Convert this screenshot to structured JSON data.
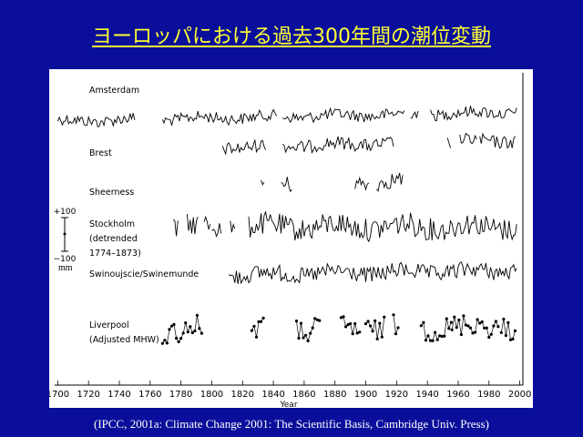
{
  "slide": {
    "title": "ヨーロッパにおける過去300年間の潮位変動",
    "caption": "(IPCC, 2001a: Climate Change 2001: The Scientific Basis, Cambridge Univ. Press)"
  },
  "colors": {
    "background": "#0a0e9a",
    "title": "#ffff33",
    "caption": "#ffffff",
    "panel": "#ffffff",
    "lines": "#000000"
  },
  "chart_data": {
    "type": "line",
    "title": "",
    "xlabel": "Year",
    "ylabel": "",
    "xlim": [
      1698,
      2002
    ],
    "xticks": [
      1700,
      1720,
      1740,
      1760,
      1780,
      1800,
      1820,
      1840,
      1860,
      1880,
      1900,
      1920,
      1940,
      1960,
      1980,
      2000
    ],
    "scale_bar": {
      "top_label": "+100",
      "bottom_label": "−100",
      "unit": "mm"
    },
    "series": [
      {
        "name": "Amsterdam",
        "label_lines": [
          "Amsterdam"
        ],
        "style": "line",
        "segments": [
          [
            1700,
            1750
          ],
          [
            1768,
            1842
          ],
          [
            1846,
            1925
          ],
          [
            1929,
            1934
          ],
          [
            1942,
            1998
          ]
        ],
        "trend": 0.25,
        "amp": 0.35
      },
      {
        "name": "Brest",
        "label_lines": [
          "Brest"
        ],
        "style": "line",
        "segments": [
          [
            1807,
            1835
          ],
          [
            1846,
            1918
          ],
          [
            1953,
            1955
          ],
          [
            1961,
            1972
          ],
          [
            1974,
            1997
          ]
        ],
        "trend": 0.3,
        "amp": 0.4
      },
      {
        "name": "Sheerness",
        "label_lines": [
          "Sheerness"
        ],
        "style": "line",
        "segments": [
          [
            1832,
            1834
          ],
          [
            1845,
            1852
          ],
          [
            1893,
            1902
          ],
          [
            1907,
            1924
          ]
        ],
        "trend": 0.3,
        "amp": 0.5
      },
      {
        "name": "Stockholm (detrended 1774–1873)",
        "label_lines": [
          "Stockholm",
          "(detrended",
          "1774–1873)"
        ],
        "style": "line",
        "segments": [
          [
            1775,
            1778
          ],
          [
            1784,
            1791
          ],
          [
            1795,
            1799
          ],
          [
            1800,
            1806
          ],
          [
            1812,
            1815
          ],
          [
            1824,
            1998
          ]
        ],
        "trend": 0.0,
        "amp": 0.7
      },
      {
        "name": "Swinoujscie/Swinemunde",
        "label_lines": [
          "Swinoujscie/Swinemunde"
        ],
        "style": "line",
        "segments": [
          [
            1811,
            1998
          ]
        ],
        "trend": 0.2,
        "amp": 0.5
      },
      {
        "name": "Liverpool (Adjusted MHW)",
        "label_lines": [
          "Liverpool",
          "(Adjusted MHW)"
        ],
        "style": "dots",
        "segments": [
          [
            1768,
            1794
          ],
          [
            1826,
            1834
          ],
          [
            1855,
            1870
          ],
          [
            1884,
            1896
          ],
          [
            1900,
            1912
          ],
          [
            1918,
            1922
          ],
          [
            1936,
            1956
          ],
          [
            1956,
            1987
          ],
          [
            1988,
            1997
          ]
        ],
        "trend": 0.15,
        "amp": 0.7
      }
    ]
  }
}
